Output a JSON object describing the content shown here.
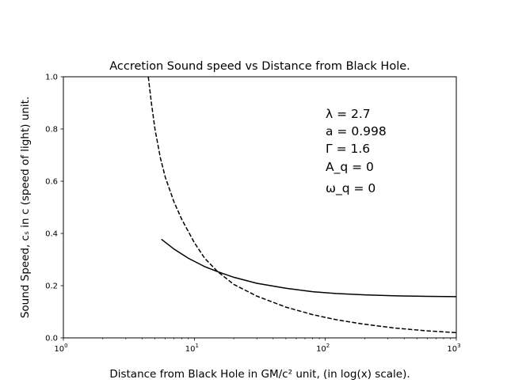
{
  "chart_data": {
    "type": "line",
    "title": "Accretion Sound speed vs Distance from Black Hole.",
    "xlabel": "Distance from Black Hole in GM/c² unit, (in log(x) scale).",
    "ylabel": "Sound Speed, cₛ in c (speed of light) unit.",
    "xscale": "log",
    "xlim": [
      1,
      1000
    ],
    "ylim": [
      0,
      1.0
    ],
    "x_ticks": [
      {
        "value": 1,
        "base": "10",
        "exp": "0"
      },
      {
        "value": 10,
        "base": "10",
        "exp": "1"
      },
      {
        "value": 100,
        "base": "10",
        "exp": "2"
      },
      {
        "value": 1000,
        "base": "10",
        "exp": "3"
      }
    ],
    "y_ticks": [
      "0.0",
      "0.2",
      "0.4",
      "0.6",
      "0.8",
      "1.0"
    ],
    "grid": false,
    "series": [
      {
        "style": "solid",
        "color": "#000000",
        "x": [
          5.6,
          7,
          9,
          12,
          15,
          20,
          30,
          50,
          80,
          120,
          200,
          350,
          600,
          1000
        ],
        "y": [
          0.378,
          0.34,
          0.305,
          0.273,
          0.254,
          0.232,
          0.209,
          0.19,
          0.177,
          0.17,
          0.165,
          0.161,
          0.159,
          0.158
        ]
      },
      {
        "style": "dashed",
        "color": "#000000",
        "x": [
          4.45,
          4.7,
          5,
          5.5,
          6,
          7,
          8,
          10,
          12,
          15,
          20,
          30,
          50,
          80,
          120,
          200,
          350,
          600,
          1000
        ],
        "y": [
          1.0,
          0.9,
          0.8,
          0.69,
          0.615,
          0.52,
          0.455,
          0.365,
          0.305,
          0.255,
          0.205,
          0.16,
          0.118,
          0.089,
          0.07,
          0.052,
          0.037,
          0.027,
          0.02
        ]
      }
    ],
    "annotations": [
      "λ = 2.7",
      "a = 0.998",
      "Γ = 1.6",
      "A_q = 0",
      "ω_q = 0"
    ]
  }
}
